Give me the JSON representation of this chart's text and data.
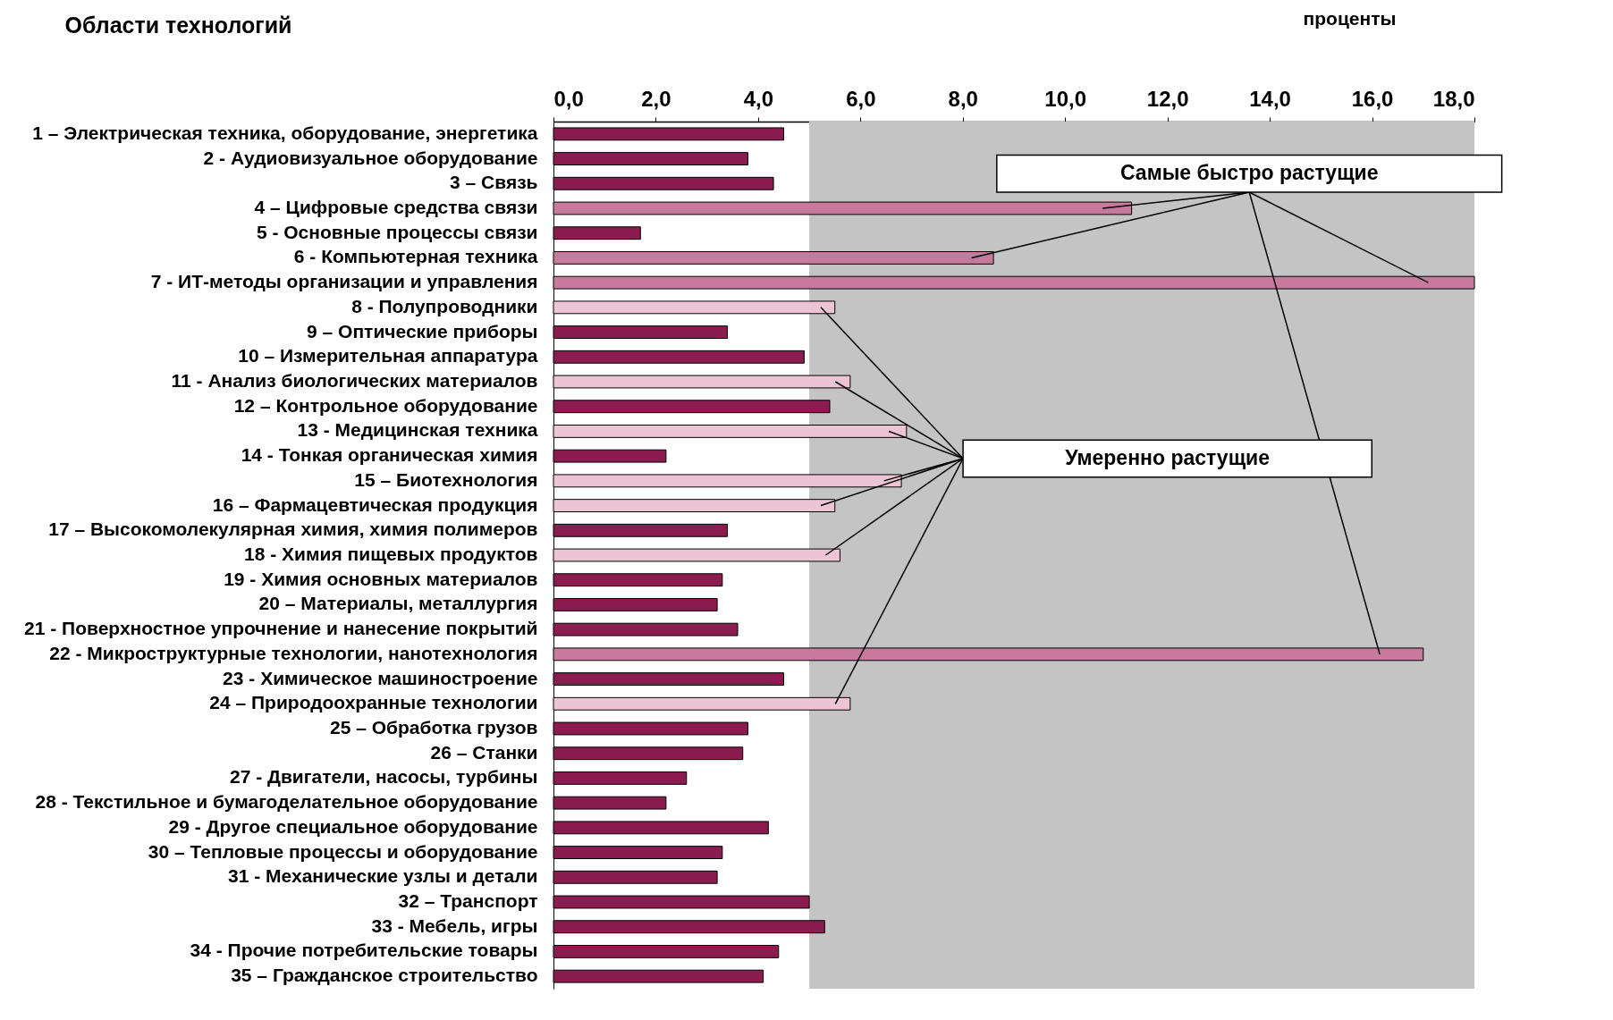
{
  "chart_data": {
    "type": "bar",
    "orientation": "horizontal",
    "ylabel": "Области технологий",
    "xlabel": "проценты",
    "categories": [
      "1 – Электрическая техника, оборудование, энергетика",
      "2 - Аудиовизуальное оборудование",
      "3 – Связь",
      "4 – Цифровые средства связи",
      "5 - Основные процессы связи",
      "6 - Компьютерная техника",
      "7 - ИТ-методы организации и управления",
      "8 - Полупроводники",
      "9 – Оптические приборы",
      "10 – Измерительная аппаратура",
      "11 - Анализ биологических материалов",
      "12 – Контрольное оборудование",
      "13 - Медицинская техника",
      "14 - Тонкая органическая химия",
      "15 – Биотехнология",
      "16 – Фармацевтическая продукция",
      "17 – Высокомолекулярная химия, химия полимеров",
      "18 - Химия пищевых продуктов",
      "19 - Химия основных материалов",
      "20 – Материалы, металлургия",
      "21 -  Поверхностное упрочнение и нанесение покрытий",
      "22 - Микроструктурные технологии, нанотехнология",
      "23 - Химическое машиностроение",
      "24 – Природоохранные технологии",
      "25 – Обработка грузов",
      "26 – Станки",
      "27 - Двигатели, насосы, турбины",
      "28 - Текстильное и бумагоделательное оборудование",
      "29 - Другое специальное оборудование",
      "30 – Тепловые процессы и оборудование",
      "31 - Механические узлы и детали",
      "32 – Транспорт",
      "33 - Мебель, игры",
      "34 - Прочие потребительские товары",
      "35 – Гражданское строительство"
    ],
    "values": [
      4.5,
      3.8,
      4.3,
      11.3,
      1.7,
      8.6,
      18.0,
      5.5,
      3.4,
      4.9,
      5.8,
      5.4,
      6.9,
      2.2,
      6.8,
      5.5,
      3.4,
      5.6,
      3.3,
      3.2,
      3.6,
      17.0,
      4.5,
      5.8,
      3.8,
      3.7,
      2.6,
      2.2,
      4.2,
      3.3,
      3.2,
      5.0,
      5.3,
      4.4,
      4.1
    ],
    "colors": [
      "#8b1c4f",
      "#8b1c4f",
      "#8b1c4f",
      "#c77a9c",
      "#8b1c4f",
      "#c77a9c",
      "#c77a9c",
      "#ecc4d4",
      "#8b1c4f",
      "#8b1c4f",
      "#ecc4d4",
      "#8b1c4f",
      "#ecc4d4",
      "#8b1c4f",
      "#ecc4d4",
      "#ecc4d4",
      "#8b1c4f",
      "#ecc4d4",
      "#8b1c4f",
      "#8b1c4f",
      "#8b1c4f",
      "#c77a9c",
      "#8b1c4f",
      "#ecc4d4",
      "#8b1c4f",
      "#8b1c4f",
      "#8b1c4f",
      "#8b1c4f",
      "#8b1c4f",
      "#8b1c4f",
      "#8b1c4f",
      "#8b1c4f",
      "#8b1c4f",
      "#8b1c4f",
      "#8b1c4f"
    ],
    "xlim": [
      0,
      18
    ],
    "xticks": [
      {
        "value": 0,
        "label": "0,0"
      },
      {
        "value": 2,
        "label": "2,0"
      },
      {
        "value": 4,
        "label": "4,0"
      },
      {
        "value": 6,
        "label": "6,0"
      },
      {
        "value": 8,
        "label": "8,0"
      },
      {
        "value": 10,
        "label": "10,0"
      },
      {
        "value": 12,
        "label": "12,0"
      },
      {
        "value": 14,
        "label": "14,0"
      },
      {
        "value": 16,
        "label": "16,0"
      },
      {
        "value": 18,
        "label": "18,0"
      }
    ],
    "bands": [
      {
        "axis": "x",
        "from": 5,
        "to": 18,
        "color": "#c4c4c4"
      }
    ],
    "annotations": [
      "Самые быстро растущие",
      "Умеренно растущие"
    ],
    "grid": false
  }
}
